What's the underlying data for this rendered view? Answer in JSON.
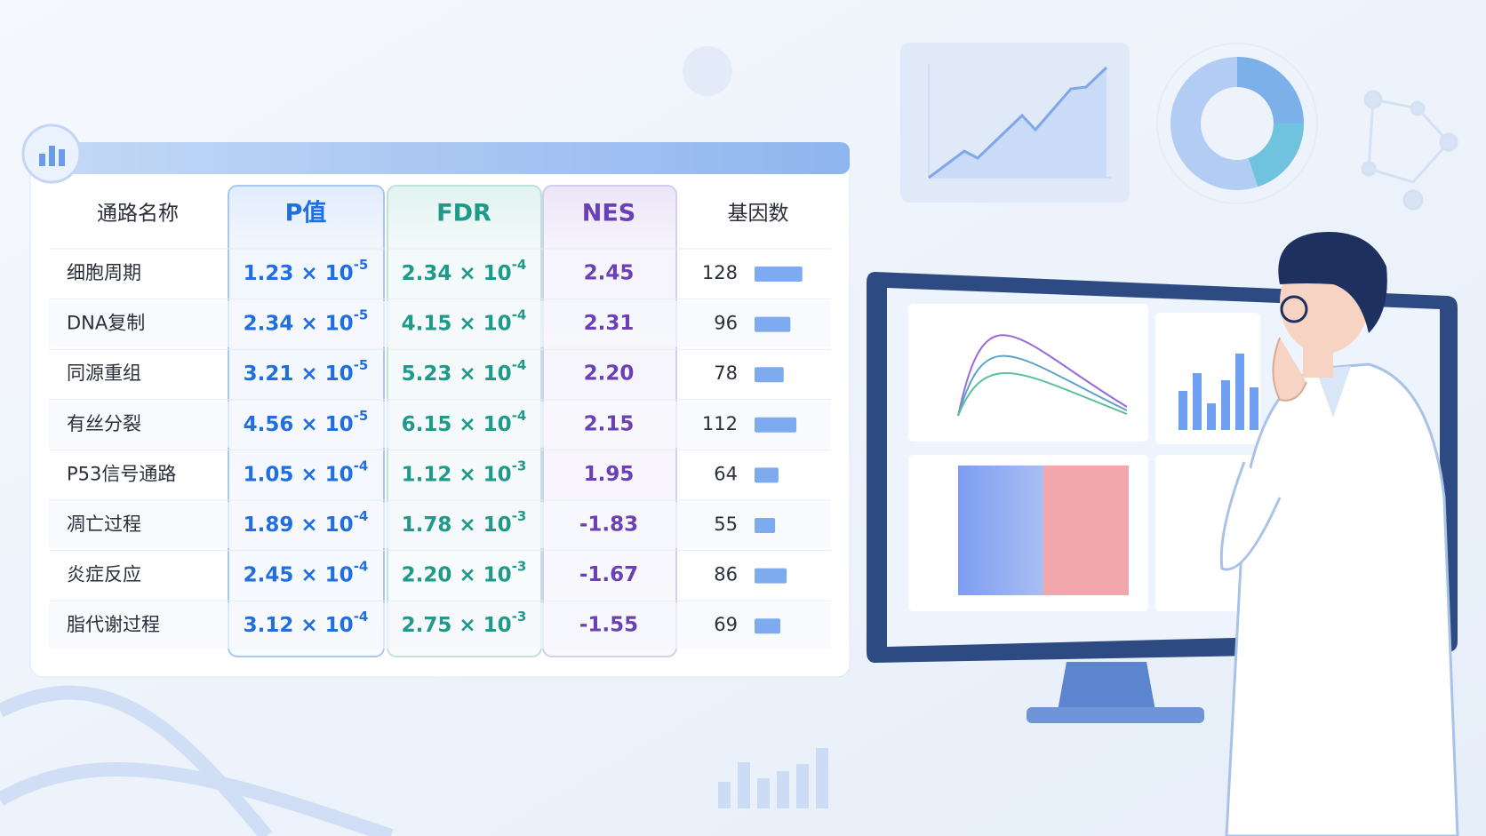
{
  "table": {
    "headers": [
      "通路名称",
      "P值",
      "FDR",
      "NES",
      "基因数"
    ],
    "rows": [
      {
        "pathway": "细胞周期",
        "p_value": {
          "base": "1.23 × 10",
          "exp": "-5"
        },
        "fdr": {
          "base": "2.34 × 10",
          "exp": "-4"
        },
        "nes": "2.45",
        "gene_count": 128
      },
      {
        "pathway": "DNA复制",
        "p_value": {
          "base": "2.34 × 10",
          "exp": "-5"
        },
        "fdr": {
          "base": "4.15 × 10",
          "exp": "-4"
        },
        "nes": "2.31",
        "gene_count": 96
      },
      {
        "pathway": "同源重组",
        "p_value": {
          "base": "3.21 × 10",
          "exp": "-5"
        },
        "fdr": {
          "base": "5.23 × 10",
          "exp": "-4"
        },
        "nes": "2.20",
        "gene_count": 78
      },
      {
        "pathway": "有丝分裂",
        "p_value": {
          "base": "4.56 × 10",
          "exp": "-5"
        },
        "fdr": {
          "base": "6.15 × 10",
          "exp": "-4"
        },
        "nes": "2.15",
        "gene_count": 112
      },
      {
        "pathway": "P53信号通路",
        "p_value": {
          "base": "1.05 × 10",
          "exp": "-4"
        },
        "fdr": {
          "base": "1.12 × 10",
          "exp": "-3"
        },
        "nes": "1.95",
        "gene_count": 64
      },
      {
        "pathway": "凋亡过程",
        "p_value": {
          "base": "1.89 × 10",
          "exp": "-4"
        },
        "fdr": {
          "base": "1.78 × 10",
          "exp": "-3"
        },
        "nes": "-1.83",
        "gene_count": 55
      },
      {
        "pathway": "炎症反应",
        "p_value": {
          "base": "2.45 × 10",
          "exp": "-4"
        },
        "fdr": {
          "base": "2.20 × 10",
          "exp": "-3"
        },
        "nes": "-1.67",
        "gene_count": 86
      },
      {
        "pathway": "脂代谢过程",
        "p_value": {
          "base": "3.12 × 10",
          "exp": "-4"
        },
        "fdr": {
          "base": "2.75 × 10",
          "exp": "-3"
        },
        "nes": "-1.55",
        "gene_count": 69
      }
    ]
  }
}
